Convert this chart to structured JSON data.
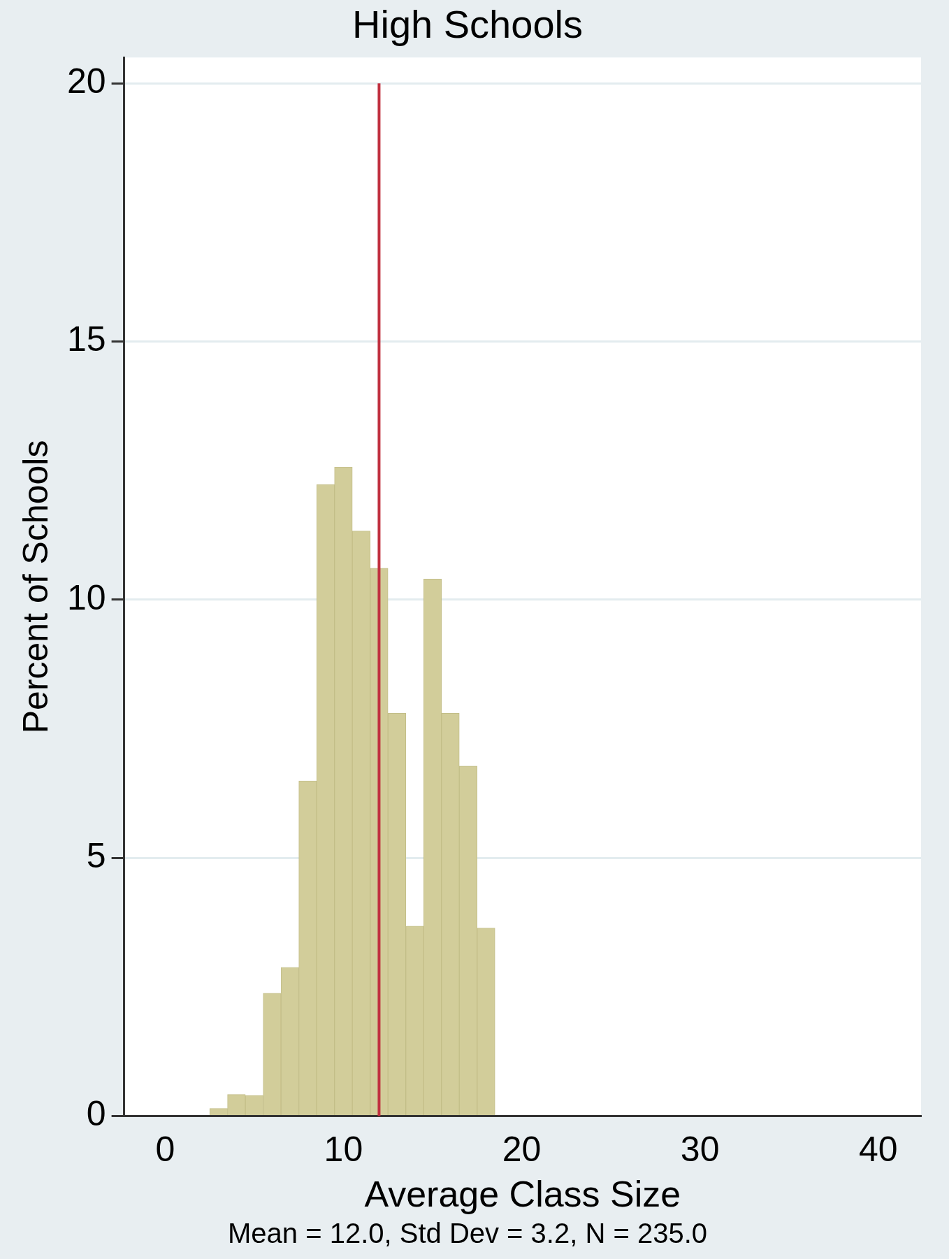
{
  "chart_data": {
    "type": "histogram",
    "title": "High Schools",
    "xlabel": "Average Class Size",
    "ylabel": "Percent of Schools",
    "bins": [
      2.5,
      3.5,
      4.5,
      5.5,
      6.5,
      7.5,
      8.5,
      9.5,
      10.5,
      11.5,
      12.5,
      13.5,
      14.5,
      15.5,
      16.5,
      17.5,
      18.5
    ],
    "values": [
      0.15,
      0.42,
      0.4,
      2.38,
      2.88,
      6.49,
      12.23,
      12.57,
      11.33,
      10.61,
      7.8,
      3.68,
      10.4,
      7.8,
      6.78,
      3.64
    ],
    "color": "#d2cd9a",
    "xlim": [
      -2.3,
      42.4
    ],
    "xticks": [
      0,
      10,
      20,
      30,
      40
    ],
    "ylim": [
      0,
      20.5
    ],
    "yticks": [
      0,
      5,
      10,
      15,
      20
    ],
    "grid": "y",
    "ref_lines": [
      {
        "axis": "x",
        "value": 12.0,
        "color": "#c0303f"
      }
    ],
    "annotations": [
      "Mean = 12.0, Std Dev = 3.2, N = 235.0"
    ],
    "legend": false
  }
}
